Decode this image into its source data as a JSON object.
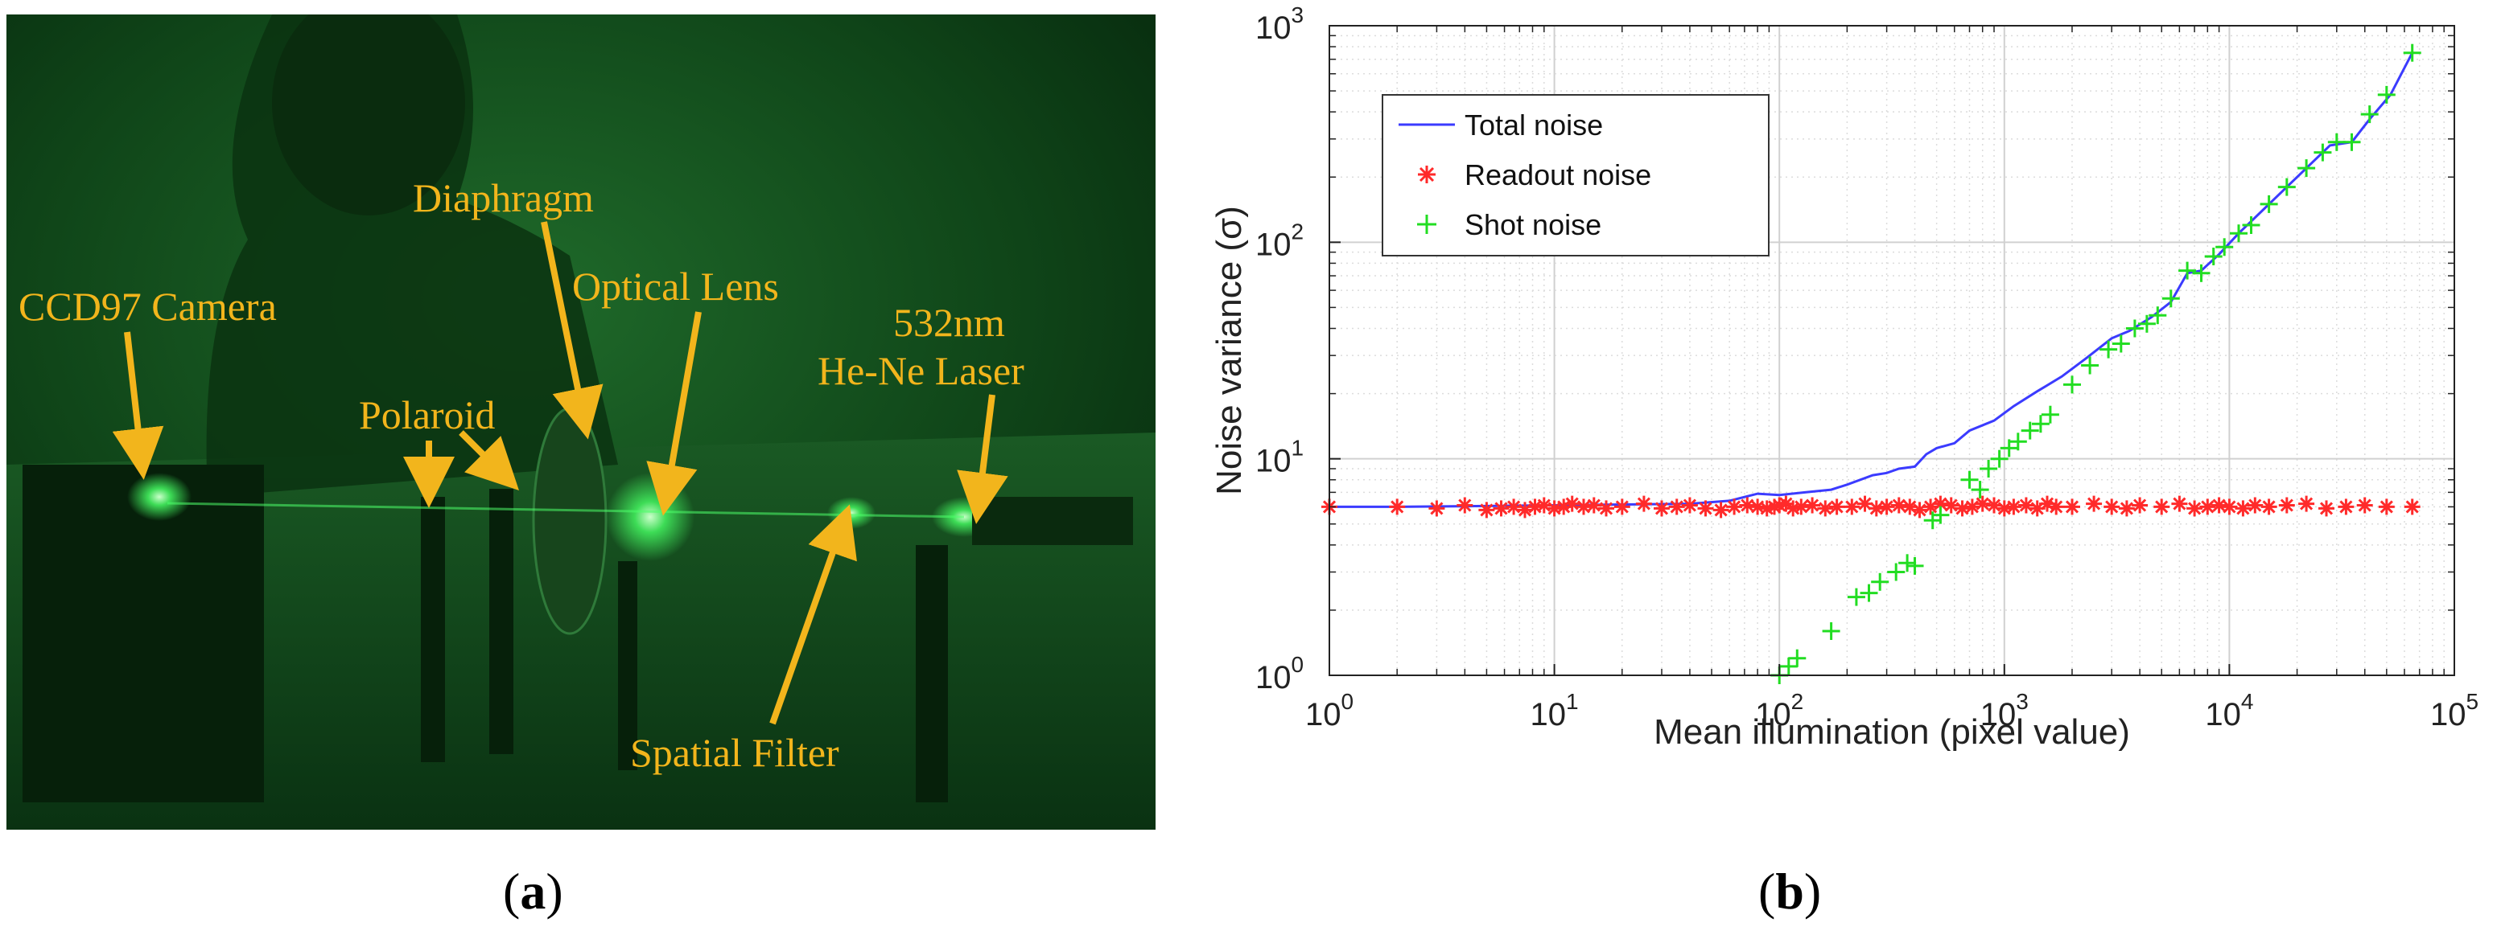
{
  "panel_a": {
    "caption_letter": "a",
    "labels": {
      "ccd": "CCD97 Camera",
      "polaroid": "Polaroid",
      "diaphragm": "Diaphragm",
      "optical_lens": "Optical Lens",
      "laser_line1": "532nm",
      "laser_line2": "He-Ne  Laser",
      "spatial_filter": "Spatial Filter"
    },
    "colors": {
      "label": "#f2b51c",
      "background": "#0a3a12"
    }
  },
  "panel_b": {
    "caption_letter": "b"
  },
  "chart_data": {
    "type": "scatter",
    "title": "",
    "xlabel": "Mean illumination (pixel value)",
    "ylabel": "Noise variance (σ)",
    "xscale": "log",
    "yscale": "log",
    "xlim": [
      1,
      100000
    ],
    "ylim": [
      1,
      1000
    ],
    "grid": true,
    "legend_position": "top-left",
    "x_ticks": [
      {
        "value": 1,
        "base": "10",
        "exp": "0"
      },
      {
        "value": 10,
        "base": "10",
        "exp": "1"
      },
      {
        "value": 100,
        "base": "10",
        "exp": "2"
      },
      {
        "value": 1000,
        "base": "10",
        "exp": "3"
      },
      {
        "value": 10000,
        "base": "10",
        "exp": "4"
      },
      {
        "value": 100000,
        "base": "10",
        "exp": "5"
      }
    ],
    "y_ticks": [
      {
        "value": 1,
        "base": "10",
        "exp": "0"
      },
      {
        "value": 10,
        "base": "10",
        "exp": "1"
      },
      {
        "value": 100,
        "base": "10",
        "exp": "2"
      },
      {
        "value": 1000,
        "base": "10",
        "exp": "3"
      }
    ],
    "series": [
      {
        "name": "Total noise",
        "style": "line",
        "color": "#3b3bff",
        "x": [
          1,
          2,
          5,
          10,
          20,
          40,
          60,
          80,
          100,
          130,
          170,
          200,
          260,
          300,
          340,
          400,
          450,
          500,
          600,
          700,
          900,
          1100,
          1400,
          1800,
          2300,
          3000,
          3600,
          4500,
          5500,
          6500,
          7500,
          9000,
          11000,
          14000,
          18000,
          23000,
          28000,
          35000,
          42000,
          52000,
          65000
        ],
        "y": [
          6.0,
          6.0,
          6.05,
          6.1,
          6.15,
          6.2,
          6.4,
          6.9,
          6.8,
          7.0,
          7.2,
          7.6,
          8.4,
          8.6,
          9.0,
          9.2,
          10.5,
          11.2,
          11.8,
          13.5,
          15.0,
          17.5,
          20.5,
          24.0,
          29.0,
          36.0,
          39.0,
          45.0,
          53.0,
          72.0,
          74.0,
          88.0,
          110.0,
          140.0,
          180.0,
          230.0,
          280.0,
          290.0,
          370.0,
          480.0,
          750.0
        ]
      },
      {
        "name": "Readout noise",
        "style": "star",
        "color": "#ff2a2a",
        "x": [
          1,
          2,
          3,
          4,
          5,
          5.8,
          6.6,
          7.4,
          8.2,
          9,
          10,
          11,
          12,
          13.5,
          15,
          17,
          20,
          25,
          30,
          35,
          40,
          47,
          55,
          63,
          72,
          80,
          88,
          95,
          100,
          107,
          115,
          125,
          140,
          160,
          180,
          210,
          240,
          270,
          300,
          340,
          380,
          420,
          470,
          520,
          580,
          650,
          720,
          800,
          900,
          1000,
          1100,
          1250,
          1400,
          1550,
          1700,
          2000,
          2500,
          3000,
          3500,
          4000,
          5000,
          6000,
          7000,
          8000,
          9000,
          10000,
          11500,
          13000,
          15000,
          18000,
          22000,
          27000,
          33000,
          40000,
          50000,
          65000
        ],
        "y": [
          6.0,
          6.0,
          5.9,
          6.1,
          5.8,
          5.9,
          6.0,
          5.8,
          6.0,
          6.1,
          5.9,
          6.0,
          6.2,
          6.0,
          6.1,
          5.9,
          6.0,
          6.2,
          5.9,
          6.0,
          6.1,
          5.9,
          5.8,
          6.0,
          6.1,
          6.0,
          5.9,
          6.0,
          6.1,
          6.2,
          5.9,
          6.0,
          6.1,
          5.9,
          6.0,
          6.0,
          6.2,
          5.9,
          6.0,
          6.1,
          6.0,
          5.8,
          6.0,
          6.2,
          6.1,
          5.9,
          6.0,
          6.2,
          6.1,
          5.9,
          6.0,
          6.1,
          5.9,
          6.2,
          6.0,
          6.0,
          6.2,
          6.0,
          5.9,
          6.1,
          6.0,
          6.2,
          5.9,
          6.0,
          6.1,
          6.0,
          5.9,
          6.1,
          6.0,
          6.1,
          6.2,
          5.9,
          6.0,
          6.1,
          6.0,
          6.0
        ]
      },
      {
        "name": "Shot noise",
        "style": "plus",
        "color": "#22dd22",
        "x": [
          100,
          110,
          120,
          170,
          220,
          250,
          280,
          330,
          370,
          400,
          480,
          520,
          700,
          780,
          850,
          950,
          1050,
          1150,
          1300,
          1450,
          1600,
          2000,
          2400,
          2900,
          3300,
          3800,
          4300,
          4800,
          5500,
          6500,
          7500,
          8500,
          9500,
          11000,
          12500,
          15000,
          18000,
          22000,
          26000,
          30000,
          35000,
          42000,
          50000,
          65000
        ],
        "y": [
          1.0,
          1.1,
          1.2,
          1.6,
          2.3,
          2.4,
          2.7,
          3.0,
          3.3,
          3.2,
          5.2,
          5.5,
          8.0,
          7.2,
          9.0,
          10.0,
          11.2,
          12.0,
          13.5,
          14.5,
          16.0,
          22.0,
          27.0,
          32.0,
          34.0,
          40.0,
          42.0,
          46.0,
          55.0,
          74.0,
          72.0,
          86.0,
          95.0,
          110.0,
          120.0,
          150.0,
          180.0,
          220.0,
          260.0,
          290.0,
          290.0,
          390.0,
          480.0,
          750.0
        ]
      }
    ]
  }
}
